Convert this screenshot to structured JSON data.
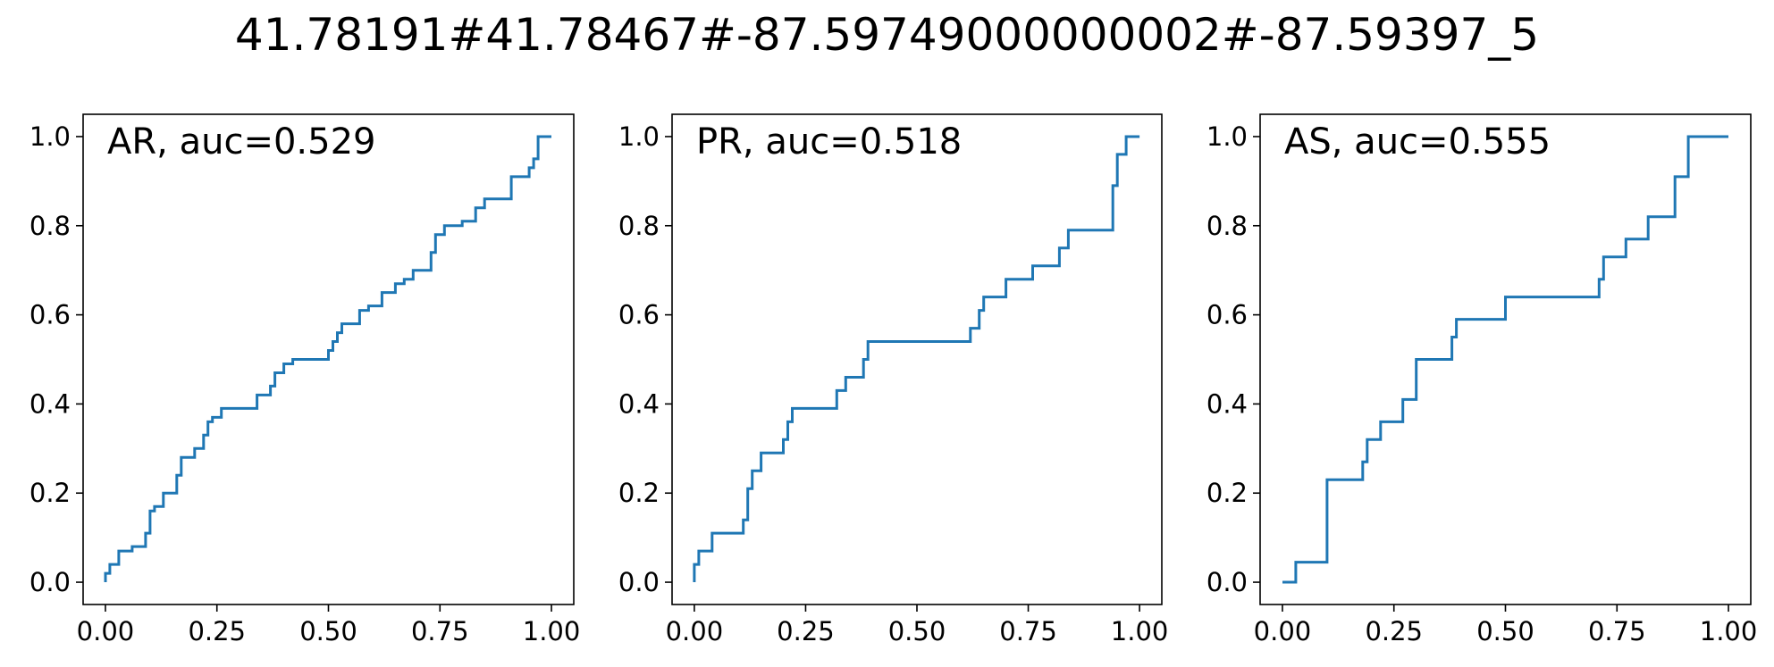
{
  "title": "41.78191#41.78467#-87.59749000000002#-87.59397_5",
  "colors": {
    "line": "#1f77b4",
    "axes": "#000000"
  },
  "chart_data": [
    {
      "type": "line",
      "title": "AR, auc=0.529",
      "xlim": [
        -0.05,
        1.05
      ],
      "ylim": [
        -0.05,
        1.05
      ],
      "xticks": [
        0.0,
        0.25,
        0.5,
        0.75,
        1.0
      ],
      "xtick_labels": [
        "0.00",
        "0.25",
        "0.50",
        "0.75",
        "1.00"
      ],
      "yticks": [
        0.0,
        0.2,
        0.4,
        0.6,
        0.8,
        1.0
      ],
      "ytick_labels": [
        "0.0",
        "0.2",
        "0.4",
        "0.6",
        "0.8",
        "1.0"
      ],
      "grid": false,
      "series": [
        {
          "x": [
            0.0,
            0.0,
            0.01,
            0.01,
            0.03,
            0.03,
            0.06,
            0.06,
            0.09,
            0.09,
            0.1,
            0.1,
            0.11,
            0.11,
            0.13,
            0.13,
            0.16,
            0.16,
            0.17,
            0.17,
            0.2,
            0.2,
            0.22,
            0.22,
            0.23,
            0.23,
            0.24,
            0.24,
            0.26,
            0.26,
            0.28,
            0.28,
            0.34,
            0.34,
            0.37,
            0.37,
            0.38,
            0.38,
            0.4,
            0.4,
            0.42,
            0.42,
            0.5,
            0.5,
            0.51,
            0.51,
            0.52,
            0.52,
            0.53,
            0.53,
            0.57,
            0.57,
            0.59,
            0.59,
            0.62,
            0.62,
            0.65,
            0.65,
            0.67,
            0.67,
            0.69,
            0.69,
            0.73,
            0.73,
            0.74,
            0.74,
            0.76,
            0.76,
            0.8,
            0.8,
            0.83,
            0.83,
            0.85,
            0.85,
            0.86,
            0.86,
            0.91,
            0.91,
            0.95,
            0.95,
            0.96,
            0.96,
            0.97,
            0.97,
            1.0
          ],
          "y": [
            0.0,
            0.02,
            0.02,
            0.04,
            0.04,
            0.07,
            0.07,
            0.08,
            0.08,
            0.11,
            0.11,
            0.16,
            0.16,
            0.17,
            0.17,
            0.2,
            0.2,
            0.24,
            0.24,
            0.28,
            0.28,
            0.3,
            0.3,
            0.33,
            0.33,
            0.36,
            0.36,
            0.37,
            0.37,
            0.39,
            0.39,
            0.39,
            0.39,
            0.42,
            0.42,
            0.44,
            0.44,
            0.47,
            0.47,
            0.49,
            0.49,
            0.5,
            0.5,
            0.52,
            0.52,
            0.54,
            0.54,
            0.56,
            0.56,
            0.58,
            0.58,
            0.61,
            0.61,
            0.62,
            0.62,
            0.65,
            0.65,
            0.67,
            0.67,
            0.68,
            0.68,
            0.7,
            0.7,
            0.74,
            0.74,
            0.78,
            0.78,
            0.8,
            0.8,
            0.81,
            0.81,
            0.84,
            0.84,
            0.86,
            0.86,
            0.86,
            0.86,
            0.91,
            0.91,
            0.93,
            0.93,
            0.95,
            0.95,
            1.0,
            1.0
          ]
        }
      ]
    },
    {
      "type": "line",
      "title": "PR, auc=0.518",
      "xlim": [
        -0.05,
        1.05
      ],
      "ylim": [
        -0.05,
        1.05
      ],
      "xticks": [
        0.0,
        0.25,
        0.5,
        0.75,
        1.0
      ],
      "xtick_labels": [
        "0.00",
        "0.25",
        "0.50",
        "0.75",
        "1.00"
      ],
      "yticks": [
        0.0,
        0.2,
        0.4,
        0.6,
        0.8,
        1.0
      ],
      "ytick_labels": [
        "0.0",
        "0.2",
        "0.4",
        "0.6",
        "0.8",
        "1.0"
      ],
      "grid": false,
      "series": [
        {
          "x": [
            0.0,
            0.0,
            0.01,
            0.01,
            0.04,
            0.04,
            0.11,
            0.11,
            0.12,
            0.12,
            0.13,
            0.13,
            0.15,
            0.15,
            0.2,
            0.2,
            0.21,
            0.21,
            0.22,
            0.22,
            0.32,
            0.32,
            0.34,
            0.34,
            0.38,
            0.38,
            0.39,
            0.39,
            0.62,
            0.62,
            0.64,
            0.64,
            0.65,
            0.65,
            0.7,
            0.7,
            0.76,
            0.76,
            0.82,
            0.82,
            0.84,
            0.84,
            0.94,
            0.94,
            0.95,
            0.95,
            0.97,
            0.97,
            1.0
          ],
          "y": [
            0.0,
            0.04,
            0.04,
            0.07,
            0.07,
            0.11,
            0.11,
            0.14,
            0.14,
            0.21,
            0.21,
            0.25,
            0.25,
            0.29,
            0.29,
            0.32,
            0.32,
            0.36,
            0.36,
            0.39,
            0.39,
            0.43,
            0.43,
            0.46,
            0.46,
            0.5,
            0.5,
            0.54,
            0.54,
            0.57,
            0.57,
            0.61,
            0.61,
            0.64,
            0.64,
            0.68,
            0.68,
            0.71,
            0.71,
            0.75,
            0.75,
            0.79,
            0.79,
            0.89,
            0.89,
            0.96,
            0.96,
            1.0,
            1.0
          ]
        }
      ]
    },
    {
      "type": "line",
      "title": "AS, auc=0.555",
      "xlim": [
        -0.05,
        1.05
      ],
      "ylim": [
        -0.05,
        1.05
      ],
      "xticks": [
        0.0,
        0.25,
        0.5,
        0.75,
        1.0
      ],
      "xtick_labels": [
        "0.00",
        "0.25",
        "0.50",
        "0.75",
        "1.00"
      ],
      "yticks": [
        0.0,
        0.2,
        0.4,
        0.6,
        0.8,
        1.0
      ],
      "ytick_labels": [
        "0.0",
        "0.2",
        "0.4",
        "0.6",
        "0.8",
        "1.0"
      ],
      "grid": false,
      "series": [
        {
          "x": [
            0.0,
            0.03,
            0.03,
            0.1,
            0.1,
            0.18,
            0.18,
            0.19,
            0.19,
            0.22,
            0.22,
            0.27,
            0.27,
            0.3,
            0.3,
            0.38,
            0.38,
            0.39,
            0.39,
            0.5,
            0.5,
            0.71,
            0.71,
            0.72,
            0.72,
            0.77,
            0.77,
            0.82,
            0.82,
            0.88,
            0.88,
            0.91,
            0.91,
            1.0
          ],
          "y": [
            0.0,
            0.0,
            0.045,
            0.045,
            0.23,
            0.23,
            0.27,
            0.27,
            0.32,
            0.32,
            0.36,
            0.36,
            0.41,
            0.41,
            0.5,
            0.5,
            0.55,
            0.55,
            0.59,
            0.59,
            0.64,
            0.64,
            0.68,
            0.68,
            0.73,
            0.73,
            0.77,
            0.77,
            0.82,
            0.82,
            0.91,
            0.91,
            1.0,
            1.0
          ]
        }
      ]
    }
  ]
}
